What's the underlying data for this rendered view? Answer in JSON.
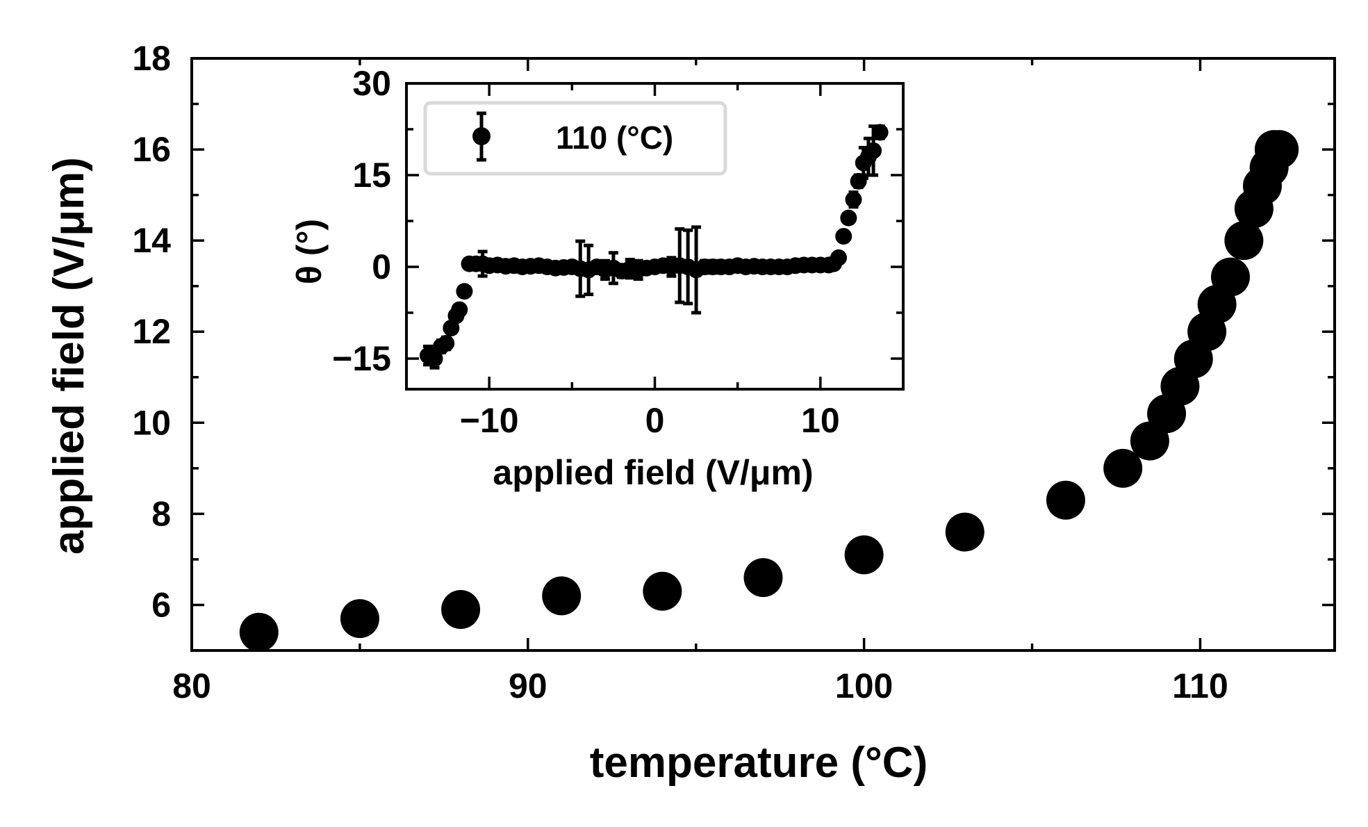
{
  "chart_data": [
    {
      "type": "scatter",
      "title": "",
      "xlabel": "temperature (°C)",
      "ylabel": "applied field (V/μm)",
      "xlim": [
        80,
        114
      ],
      "ylim": [
        5,
        18
      ],
      "xticks": [
        80,
        90,
        100,
        110
      ],
      "xtick_labels": [
        "80",
        "90",
        "100",
        "110"
      ],
      "yticks": [
        6,
        8,
        10,
        12,
        14,
        16,
        18
      ],
      "ytick_labels": [
        "6",
        "8",
        "10",
        "12",
        "14",
        "16",
        "18"
      ],
      "grid": false,
      "marker_color": "#000000",
      "series": [
        {
          "x": [
            82,
            85,
            88,
            91,
            94,
            97,
            100,
            103,
            106,
            107.7,
            108.5,
            109.0,
            109.4,
            109.8,
            110.2,
            110.5,
            110.9,
            111.3,
            111.6,
            111.85,
            112.05,
            112.2,
            112.35
          ],
          "y": [
            5.4,
            5.7,
            5.9,
            6.2,
            6.3,
            6.6,
            7.1,
            7.6,
            8.3,
            9.0,
            9.6,
            10.2,
            10.8,
            11.4,
            12.0,
            12.6,
            13.2,
            14.0,
            14.7,
            15.2,
            15.6,
            16.0,
            16.0
          ]
        }
      ]
    },
    {
      "type": "scatter",
      "title": "",
      "xlabel": "applied field (V/μm)",
      "ylabel": "θ (°)",
      "xlim": [
        -15,
        15
      ],
      "ylim": [
        -20,
        30
      ],
      "xticks": [
        -10,
        0,
        10
      ],
      "xtick_labels": [
        "−10",
        "0",
        "10"
      ],
      "yticks": [
        -15,
        0,
        15,
        30
      ],
      "ytick_labels": [
        "−15",
        "0",
        "15",
        "30"
      ],
      "grid": false,
      "legend": "top-left",
      "series": [
        {
          "name": "110 (°C)",
          "x": [
            -13.7,
            -13.3,
            -12.9,
            -12.6,
            -12.3,
            -12.0,
            -11.8,
            -11.5,
            -11.2,
            -10.8,
            -10.4,
            -10.0,
            -9.5,
            -9.0,
            -8.5,
            -8.0,
            -7.5,
            -7.0,
            -6.5,
            -6.0,
            -5.5,
            -5.0,
            -4.5,
            -4.0,
            -3.5,
            -3.0,
            -2.5,
            -2.0,
            -1.5,
            -1.0,
            -0.5,
            0.0,
            0.5,
            1.0,
            1.5,
            2.0,
            2.5,
            3.0,
            3.5,
            4.0,
            4.5,
            5.0,
            5.5,
            6.0,
            6.5,
            7.0,
            7.5,
            8.0,
            8.5,
            9.0,
            9.5,
            10.0,
            10.5,
            10.8,
            11.1,
            11.4,
            11.7,
            12.0,
            12.3,
            12.6,
            12.9,
            13.2,
            13.6
          ],
          "y": [
            -14.5,
            -15.0,
            -13.0,
            -12.5,
            -10.0,
            -8.0,
            -7.0,
            -4.0,
            0.5,
            0.5,
            0.5,
            0.2,
            0.3,
            0.1,
            0.2,
            0.0,
            0.1,
            0.2,
            0.0,
            -0.2,
            -0.1,
            0.0,
            -0.3,
            -0.5,
            0.0,
            -0.5,
            -0.2,
            -0.7,
            -0.3,
            -0.5,
            -0.2,
            0.0,
            0.2,
            0.0,
            0.2,
            0.0,
            -0.5,
            0.0,
            0.0,
            0.0,
            0.0,
            0.2,
            0.0,
            0.1,
            0.0,
            0.0,
            0.0,
            0.0,
            0.2,
            0.3,
            0.3,
            0.3,
            0.3,
            0.5,
            1.5,
            5.0,
            8.0,
            11.0,
            14.0,
            17.0,
            18.0,
            19.0,
            22.0
          ],
          "yerr": [
            1.5,
            1.5,
            1.0,
            1.0,
            0.8,
            0.6,
            0.6,
            0.6,
            0.5,
            0.5,
            2.0,
            0.6,
            0.6,
            0.6,
            0.5,
            0.5,
            0.5,
            0.5,
            0.5,
            0.6,
            0.6,
            0.8,
            4.5,
            4.0,
            0.8,
            1.5,
            2.5,
            1.0,
            1.5,
            1.5,
            0.5,
            0.6,
            0.8,
            1.5,
            6.0,
            6.0,
            7.0,
            1.0,
            1.0,
            0.6,
            0.5,
            0.5,
            0.5,
            0.5,
            0.5,
            0.5,
            0.5,
            0.5,
            0.8,
            0.5,
            0.5,
            0.5,
            0.5,
            0.5,
            0.5,
            0.8,
            0.8,
            1.2,
            1.0,
            2.5,
            3.0,
            4.0,
            1.0
          ]
        }
      ]
    }
  ]
}
